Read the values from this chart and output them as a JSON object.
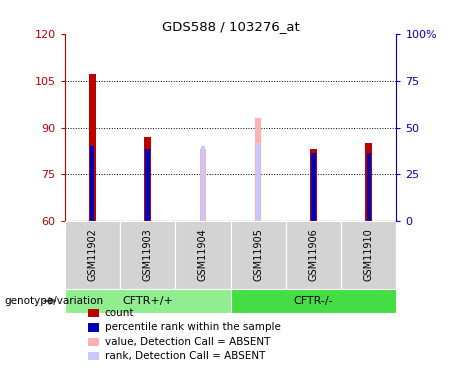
{
  "title": "GDS588 / 103276_at",
  "samples": [
    "GSM11902",
    "GSM11903",
    "GSM11904",
    "GSM11905",
    "GSM11906",
    "GSM11910"
  ],
  "absent": [
    false,
    false,
    true,
    true,
    false,
    false
  ],
  "count_values": [
    107.0,
    87.0,
    83.0,
    93.0,
    83.0,
    85.0
  ],
  "rank_values": [
    84.0,
    83.0,
    84.0,
    85.0,
    82.0,
    82.0
  ],
  "ylim_left": [
    60,
    120
  ],
  "ylim_right": [
    0,
    100
  ],
  "yticks_left": [
    60,
    75,
    90,
    105,
    120
  ],
  "yticks_right": [
    0,
    25,
    50,
    75,
    100
  ],
  "color_red": "#bb0000",
  "color_blue": "#0000bb",
  "color_pink": "#ffb0b0",
  "color_lightblue": "#c8c8ff",
  "color_group1_bg": "#90ee90",
  "color_group2_bg": "#44dd44",
  "color_xticklabel_bg": "#d3d3d3",
  "bar_width": 0.12,
  "rank_bar_width": 0.08,
  "legend_items": [
    {
      "label": "count",
      "color": "#bb0000"
    },
    {
      "label": "percentile rank within the sample",
      "color": "#0000bb"
    },
    {
      "label": "value, Detection Call = ABSENT",
      "color": "#ffb0b0"
    },
    {
      "label": "rank, Detection Call = ABSENT",
      "color": "#c8c8ff"
    }
  ],
  "group1_label": "CFTR+/+",
  "group2_label": "CFTR-/-",
  "group1_range": [
    0,
    2
  ],
  "group2_range": [
    3,
    5
  ],
  "genotype_label": "genotype/variation"
}
